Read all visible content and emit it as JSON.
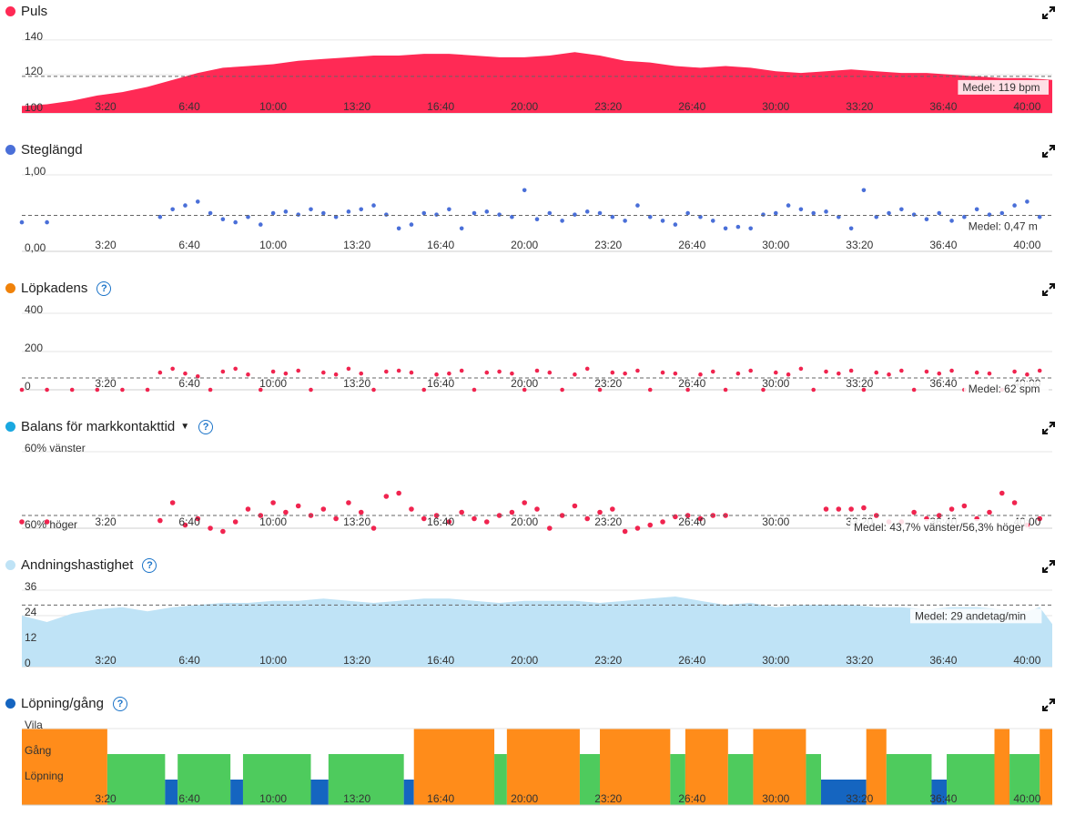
{
  "x_ticks": [
    "3:20",
    "6:40",
    "10:00",
    "13:20",
    "16:40",
    "20:00",
    "23:20",
    "26:40",
    "30:00",
    "33:20",
    "36:40",
    "40:00"
  ],
  "x_tick_minutes": [
    3.333,
    6.667,
    10,
    13.333,
    16.667,
    20,
    23.333,
    26.667,
    30,
    33.333,
    36.667,
    40
  ],
  "panels": {
    "puls": {
      "title": "Puls",
      "color": "#ff2a55",
      "mean_label": "Medel: 119 bpm"
    },
    "steg": {
      "title": "Steglängd",
      "color": "#4a6fd8",
      "mean_label": "Medel: 0,47 m"
    },
    "kad": {
      "title": "Löpkadens",
      "color": "#f0820a",
      "mean_label": "Medel: 62 spm"
    },
    "bal": {
      "title": "Balans för markkontakttid",
      "color": "#1aa8e0",
      "mean_label": "Medel: 43,7% vänster/56,3% höger"
    },
    "andn": {
      "title": "Andningshastighet",
      "color": "#bfe3f6",
      "mean_label": "Medel: 29 andetag/min"
    },
    "lop": {
      "title": "Löpning/gång",
      "color": "#1565c0"
    }
  },
  "chart_data": [
    {
      "type": "area",
      "title": "Puls",
      "y_ticks": [
        "140",
        "120",
        "100"
      ],
      "ylim": [
        100,
        142
      ],
      "mean": 119,
      "x": [
        0,
        1,
        2,
        3,
        4,
        5,
        6,
        7,
        8,
        9,
        10,
        11,
        12,
        13,
        14,
        15,
        16,
        17,
        18,
        19,
        20,
        21,
        22,
        23,
        24,
        25,
        26,
        27,
        28,
        29,
        30,
        31,
        32,
        33,
        34,
        35,
        36,
        37,
        38,
        39,
        40,
        41
      ],
      "values": [
        102,
        103,
        105,
        108,
        110,
        113,
        117,
        121,
        124,
        125,
        126,
        128,
        129,
        130,
        131,
        131,
        132,
        132,
        131,
        130,
        130,
        131,
        133,
        131,
        128,
        127,
        125,
        124,
        125,
        124,
        122,
        121,
        122,
        123,
        122,
        121,
        121,
        120,
        119,
        118,
        118,
        117
      ]
    },
    {
      "type": "scatter",
      "title": "Steglängd",
      "y_ticks": [
        "1,00",
        "0,00"
      ],
      "ylim": [
        0,
        1
      ],
      "mean": 0.47,
      "x": [
        0,
        1,
        5.5,
        6,
        6.5,
        7,
        7.5,
        8,
        8.5,
        9,
        9.5,
        10,
        10.5,
        11,
        11.5,
        12,
        12.5,
        13,
        13.5,
        14,
        14.5,
        15,
        15.5,
        16,
        16.5,
        17,
        17.5,
        18,
        18.5,
        19,
        19.5,
        20,
        20.5,
        21,
        21.5,
        22,
        22.5,
        23,
        23.5,
        24,
        24.5,
        25,
        25.5,
        26,
        26.5,
        27,
        27.5,
        28,
        28.5,
        29,
        29.5,
        30,
        30.5,
        31,
        31.5,
        32,
        32.5,
        33,
        33.5,
        34,
        34.5,
        35,
        35.5,
        36,
        36.5,
        37,
        37.5,
        38,
        38.5,
        39,
        39.5,
        40,
        40.5
      ],
      "values": [
        0.38,
        0.38,
        0.45,
        0.55,
        0.6,
        0.65,
        0.5,
        0.42,
        0.38,
        0.45,
        0.35,
        0.5,
        0.52,
        0.48,
        0.55,
        0.5,
        0.45,
        0.52,
        0.55,
        0.6,
        0.48,
        0.3,
        0.35,
        0.5,
        0.48,
        0.55,
        0.3,
        0.5,
        0.52,
        0.48,
        0.45,
        0.8,
        0.42,
        0.5,
        0.4,
        0.48,
        0.52,
        0.5,
        0.45,
        0.4,
        0.6,
        0.45,
        0.4,
        0.35,
        0.5,
        0.45,
        0.4,
        0.3,
        0.32,
        0.3,
        0.48,
        0.5,
        0.6,
        0.55,
        0.5,
        0.52,
        0.45,
        0.3,
        0.8,
        0.45,
        0.5,
        0.55,
        0.48,
        0.42,
        0.5,
        0.4,
        0.45,
        0.55,
        0.48,
        0.5,
        0.6,
        0.65,
        0.45
      ]
    },
    {
      "type": "scatter",
      "title": "Löpkadens",
      "y_ticks": [
        "400",
        "200",
        "0"
      ],
      "ylim": [
        0,
        400
      ],
      "mean": 62,
      "x": [
        0,
        1,
        2,
        3,
        4,
        5,
        5.5,
        6,
        6.5,
        7,
        7.5,
        8,
        8.5,
        9,
        9.5,
        10,
        10.5,
        11,
        11.5,
        12,
        12.5,
        13,
        13.5,
        14,
        14.5,
        15,
        15.5,
        16,
        16.5,
        17,
        17.5,
        18,
        18.5,
        19,
        19.5,
        20,
        20.5,
        21,
        21.5,
        22,
        22.5,
        23,
        23.5,
        24,
        24.5,
        25,
        25.5,
        26,
        26.5,
        27,
        27.5,
        28,
        28.5,
        29,
        29.5,
        30,
        30.5,
        31,
        31.5,
        32,
        32.5,
        33,
        33.5,
        34,
        34.5,
        35,
        35.5,
        36,
        36.5,
        37,
        37.5,
        38,
        38.5,
        39,
        39.5,
        40,
        40.5
      ],
      "values": [
        0,
        0,
        0,
        0,
        0,
        0,
        90,
        110,
        85,
        70,
        0,
        95,
        110,
        80,
        0,
        95,
        85,
        100,
        0,
        90,
        80,
        110,
        85,
        0,
        95,
        100,
        90,
        0,
        80,
        85,
        100,
        0,
        90,
        95,
        85,
        0,
        100,
        90,
        0,
        80,
        110,
        0,
        90,
        85,
        100,
        0,
        90,
        85,
        0,
        80,
        95,
        0,
        85,
        100,
        0,
        90,
        80,
        110,
        0,
        95,
        85,
        100,
        0,
        90,
        80,
        100,
        0,
        95,
        85,
        100,
        0,
        90,
        85,
        0,
        95,
        80,
        100
      ]
    },
    {
      "type": "scatter",
      "title": "Balans för markkontakttid",
      "y_ticks": [
        "60% vänster",
        "60% höger"
      ],
      "ylim": [
        -60,
        60
      ],
      "mean": 43.7,
      "x": [
        0,
        1,
        5.5,
        6,
        6.5,
        7,
        7.5,
        8,
        8.5,
        9,
        9.5,
        10,
        10.5,
        11,
        11.5,
        12,
        12.5,
        13,
        13.5,
        14,
        14.5,
        15,
        15.5,
        16,
        16.5,
        17,
        17.5,
        18,
        18.5,
        19,
        19.5,
        20,
        20.5,
        21,
        21.5,
        22,
        22.5,
        23,
        23.5,
        24,
        24.5,
        25,
        25.5,
        26,
        26.5,
        27,
        27.5,
        28,
        32,
        32.5,
        33,
        33.5,
        34,
        34.5,
        35,
        35.5,
        36,
        36.5,
        37,
        37.5,
        38,
        38.5,
        39,
        39.5,
        40,
        40.5
      ],
      "values": [
        -50,
        -50,
        -48,
        -20,
        -55,
        -45,
        -60,
        -65,
        -50,
        -30,
        -40,
        -20,
        -35,
        -25,
        -40,
        -30,
        -45,
        -20,
        -35,
        -60,
        -10,
        -5,
        -30,
        -45,
        -40,
        -50,
        -35,
        -45,
        -50,
        -40,
        -35,
        -20,
        -30,
        -60,
        -40,
        -25,
        -45,
        -35,
        -30,
        -65,
        -60,
        -55,
        -50,
        -42,
        -40,
        -45,
        -40,
        -40,
        -30,
        -30,
        -30,
        -28,
        -40,
        -50,
        -50,
        -35,
        -45,
        -40,
        -30,
        -25,
        -45,
        -35,
        -5,
        -20,
        -55,
        -45
      ]
    },
    {
      "type": "area",
      "title": "Andningshastighet",
      "y_ticks": [
        "36",
        "24",
        "12",
        "0"
      ],
      "ylim": [
        0,
        36
      ],
      "mean": 29,
      "x": [
        0,
        1,
        2,
        3,
        4,
        5,
        6,
        7,
        8,
        9,
        10,
        11,
        12,
        13,
        14,
        15,
        16,
        17,
        18,
        19,
        20,
        21,
        22,
        23,
        24,
        25,
        26,
        27,
        28,
        29,
        30,
        31,
        32,
        33,
        34,
        35,
        36,
        37,
        38,
        39,
        40,
        40.5,
        41
      ],
      "values": [
        24,
        21,
        25,
        27,
        28,
        26,
        28,
        29,
        30,
        30,
        31,
        31,
        32,
        31,
        30,
        31,
        32,
        32,
        31,
        30,
        31,
        31,
        31,
        30,
        31,
        32,
        33,
        31,
        29,
        30,
        28,
        29,
        29,
        29,
        28,
        28,
        27,
        28,
        28,
        27,
        26,
        28,
        20
      ]
    },
    {
      "type": "bar",
      "title": "Löpning/gång",
      "y_ticks": [
        "Vila",
        "Gång",
        "Löpning"
      ],
      "categories": [
        "Vila",
        "Gång",
        "Löpning"
      ],
      "series_colors": {
        "Vila": "#ff8c1a",
        "Gång": "#4ecb5d",
        "Löpning": "#1565c0"
      },
      "segments_x": [
        0,
        3.4,
        5.7,
        6.2,
        8.3,
        8.8,
        11.5,
        12.2,
        15.2,
        15.6,
        18.8,
        19.3,
        22.2,
        23.0,
        25.8,
        26.4,
        28.1,
        29.1,
        31.2,
        31.8,
        33.6,
        34.4,
        36.2,
        36.8,
        38.7,
        39.3,
        40.5,
        41
      ],
      "segments_state": [
        "Vila",
        "Gång",
        "Löpning",
        "Gång",
        "Löpning",
        "Gång",
        "Löpning",
        "Gång",
        "Löpning",
        "Vila",
        "Gång",
        "Vila",
        "Gång",
        "Vila",
        "Gång",
        "Vila",
        "Gång",
        "Vila",
        "Gång",
        "Löpning",
        "Vila",
        "Gång",
        "Löpning",
        "Gång",
        "Vila",
        "Gång",
        "Vila"
      ]
    }
  ]
}
